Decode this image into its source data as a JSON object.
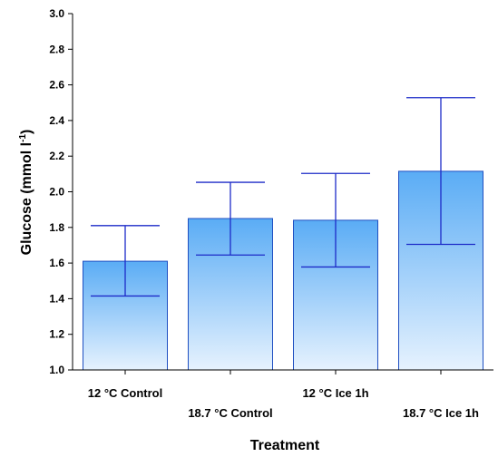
{
  "chart_data": {
    "type": "bar",
    "xlabel": "Treatment",
    "ylabel": "Glucose (mmol l",
    "ylabel_sup": "-1",
    "ylabel_close": ")",
    "ylim": [
      1.0,
      3.0
    ],
    "yticks": [
      "1.0",
      "1.2",
      "1.4",
      "1.6",
      "1.8",
      "2.0",
      "2.2",
      "2.4",
      "2.6",
      "2.8",
      "3.0"
    ],
    "categories": [
      "12 °C Control",
      "18.7 °C Control",
      "12 °C Ice 1h",
      "18.7 °C Ice 1h"
    ],
    "values": [
      1.61,
      1.85,
      1.84,
      2.115
    ],
    "error_low": [
      1.415,
      1.645,
      1.578,
      1.705
    ],
    "error_high": [
      1.81,
      2.053,
      2.103,
      2.528
    ],
    "grid": false,
    "legend": false,
    "colors": {
      "bar_top": "#5aacf5",
      "bar_bottom": "#e6f2fe",
      "bar_stroke": "#1f4fc1",
      "error_bar": "#1d2bc8",
      "axis": "#000000"
    }
  }
}
